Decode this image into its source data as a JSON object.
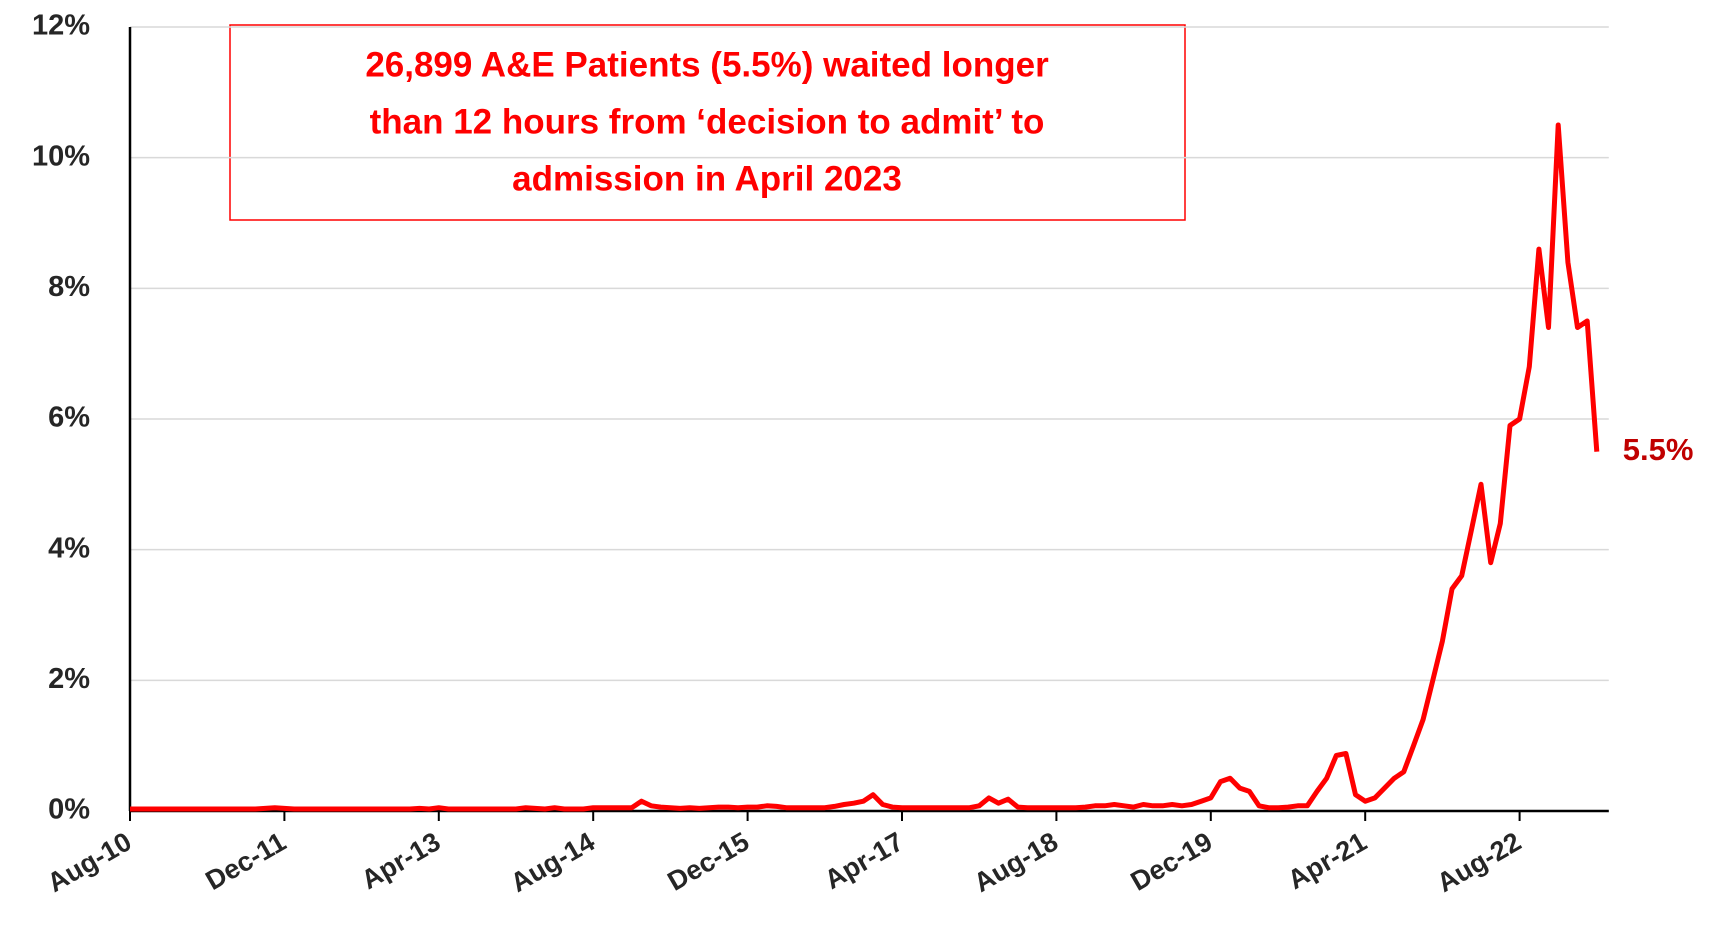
{
  "chart_data": {
    "type": "line",
    "annotation": [
      "26,899 A&E Patients (5.5%) waited longer",
      "than 12 hours from ‘decision to admit’ to",
      "admission in April 2023"
    ],
    "categories": [
      "Aug-10",
      null,
      null,
      null,
      null,
      null,
      null,
      null,
      null,
      null,
      null,
      null,
      null,
      null,
      null,
      null,
      "Dec-11",
      null,
      null,
      null,
      null,
      null,
      null,
      null,
      null,
      null,
      null,
      null,
      null,
      null,
      null,
      null,
      "Apr-13",
      null,
      null,
      null,
      null,
      null,
      null,
      null,
      null,
      null,
      null,
      null,
      null,
      null,
      null,
      null,
      "Aug-14",
      null,
      null,
      null,
      null,
      null,
      null,
      null,
      null,
      null,
      null,
      null,
      null,
      null,
      null,
      null,
      "Dec-15",
      null,
      null,
      null,
      null,
      null,
      null,
      null,
      null,
      null,
      null,
      null,
      null,
      null,
      null,
      null,
      "Apr-17",
      null,
      null,
      null,
      null,
      null,
      null,
      null,
      null,
      null,
      null,
      null,
      null,
      null,
      null,
      null,
      "Aug-18",
      null,
      null,
      null,
      null,
      null,
      null,
      null,
      null,
      null,
      null,
      null,
      null,
      null,
      null,
      null,
      "Dec-19",
      null,
      null,
      null,
      null,
      null,
      null,
      null,
      null,
      null,
      null,
      null,
      null,
      null,
      null,
      null,
      "Apr-21",
      null,
      null,
      null,
      null,
      null,
      null,
      null,
      null,
      null,
      null,
      null,
      null,
      null,
      null,
      null,
      "Aug-22",
      null,
      null,
      null,
      null,
      null,
      null,
      null,
      null
    ],
    "series": [
      {
        "color": "#ff0000",
        "values": [
          0.03,
          0.03,
          0.03,
          0.03,
          0.03,
          0.03,
          0.03,
          0.03,
          0.03,
          0.03,
          0.03,
          0.03,
          0.03,
          0.03,
          0.04,
          0.05,
          0.04,
          0.03,
          0.03,
          0.03,
          0.03,
          0.03,
          0.03,
          0.03,
          0.03,
          0.03,
          0.03,
          0.03,
          0.03,
          0.03,
          0.04,
          0.03,
          0.05,
          0.03,
          0.03,
          0.03,
          0.03,
          0.03,
          0.03,
          0.03,
          0.03,
          0.05,
          0.04,
          0.03,
          0.05,
          0.03,
          0.03,
          0.03,
          0.05,
          0.05,
          0.05,
          0.05,
          0.05,
          0.15,
          0.08,
          0.06,
          0.05,
          0.04,
          0.05,
          0.04,
          0.05,
          0.06,
          0.06,
          0.05,
          0.06,
          0.06,
          0.08,
          0.07,
          0.05,
          0.05,
          0.05,
          0.05,
          0.05,
          0.07,
          0.1,
          0.12,
          0.15,
          0.25,
          0.1,
          0.06,
          0.05,
          0.05,
          0.05,
          0.05,
          0.05,
          0.05,
          0.05,
          0.05,
          0.08,
          0.2,
          0.12,
          0.18,
          0.06,
          0.05,
          0.05,
          0.05,
          0.05,
          0.05,
          0.05,
          0.06,
          0.08,
          0.08,
          0.1,
          0.08,
          0.06,
          0.1,
          0.08,
          0.08,
          0.1,
          0.08,
          0.1,
          0.15,
          0.2,
          0.45,
          0.5,
          0.35,
          0.3,
          0.08,
          0.05,
          0.05,
          0.06,
          0.08,
          0.08,
          0.3,
          0.5,
          0.85,
          0.88,
          0.25,
          0.15,
          0.2,
          0.35,
          0.5,
          0.6,
          1.0,
          1.4,
          2.0,
          2.6,
          3.4,
          3.6,
          4.3,
          5.0,
          3.8,
          4.4,
          5.9,
          6.0,
          6.8,
          8.6,
          7.4,
          10.5,
          8.4,
          7.4,
          7.5,
          5.5
        ],
        "value_labels": [
          null,
          null,
          null,
          null,
          null,
          null,
          null,
          null,
          null,
          null,
          null,
          null,
          null,
          null,
          null,
          null,
          null,
          null,
          null,
          null,
          null,
          null,
          null,
          null,
          null,
          null,
          null,
          null,
          null,
          null,
          null,
          null,
          null,
          null,
          null,
          null,
          null,
          null,
          null,
          null,
          null,
          null,
          null,
          null,
          null,
          null,
          null,
          null,
          null,
          null,
          null,
          null,
          null,
          null,
          null,
          null,
          null,
          null,
          null,
          null,
          null,
          null,
          null,
          null,
          null,
          null,
          null,
          null,
          null,
          null,
          null,
          null,
          null,
          null,
          null,
          null,
          null,
          null,
          null,
          null,
          null,
          null,
          null,
          null,
          null,
          null,
          null,
          null,
          null,
          null,
          null,
          null,
          null,
          null,
          null,
          null,
          null,
          null,
          null,
          null,
          null,
          null,
          null,
          null,
          null,
          null,
          null,
          null,
          null,
          null,
          null,
          null,
          null,
          null,
          null,
          null,
          null,
          null,
          null,
          null,
          null,
          null,
          null,
          null,
          null,
          null,
          null,
          null,
          null,
          null,
          null,
          null,
          null,
          null,
          null,
          null,
          null,
          null,
          null,
          null,
          null,
          null,
          null,
          null,
          null,
          null,
          null,
          null,
          null,
          null,
          null,
          null,
          "5.5%"
        ],
        "label_color": "#c00000"
      }
    ],
    "ylim": [
      0,
      12
    ],
    "yticks": [
      {
        "value": 0,
        "label": "0%"
      },
      {
        "value": 2,
        "label": "2%"
      },
      {
        "value": 4,
        "label": "4%"
      },
      {
        "value": 6,
        "label": "6%"
      },
      {
        "value": 8,
        "label": "8%"
      },
      {
        "value": 10,
        "label": "10%"
      },
      {
        "value": 12,
        "label": "12%"
      }
    ],
    "grid": true
  }
}
